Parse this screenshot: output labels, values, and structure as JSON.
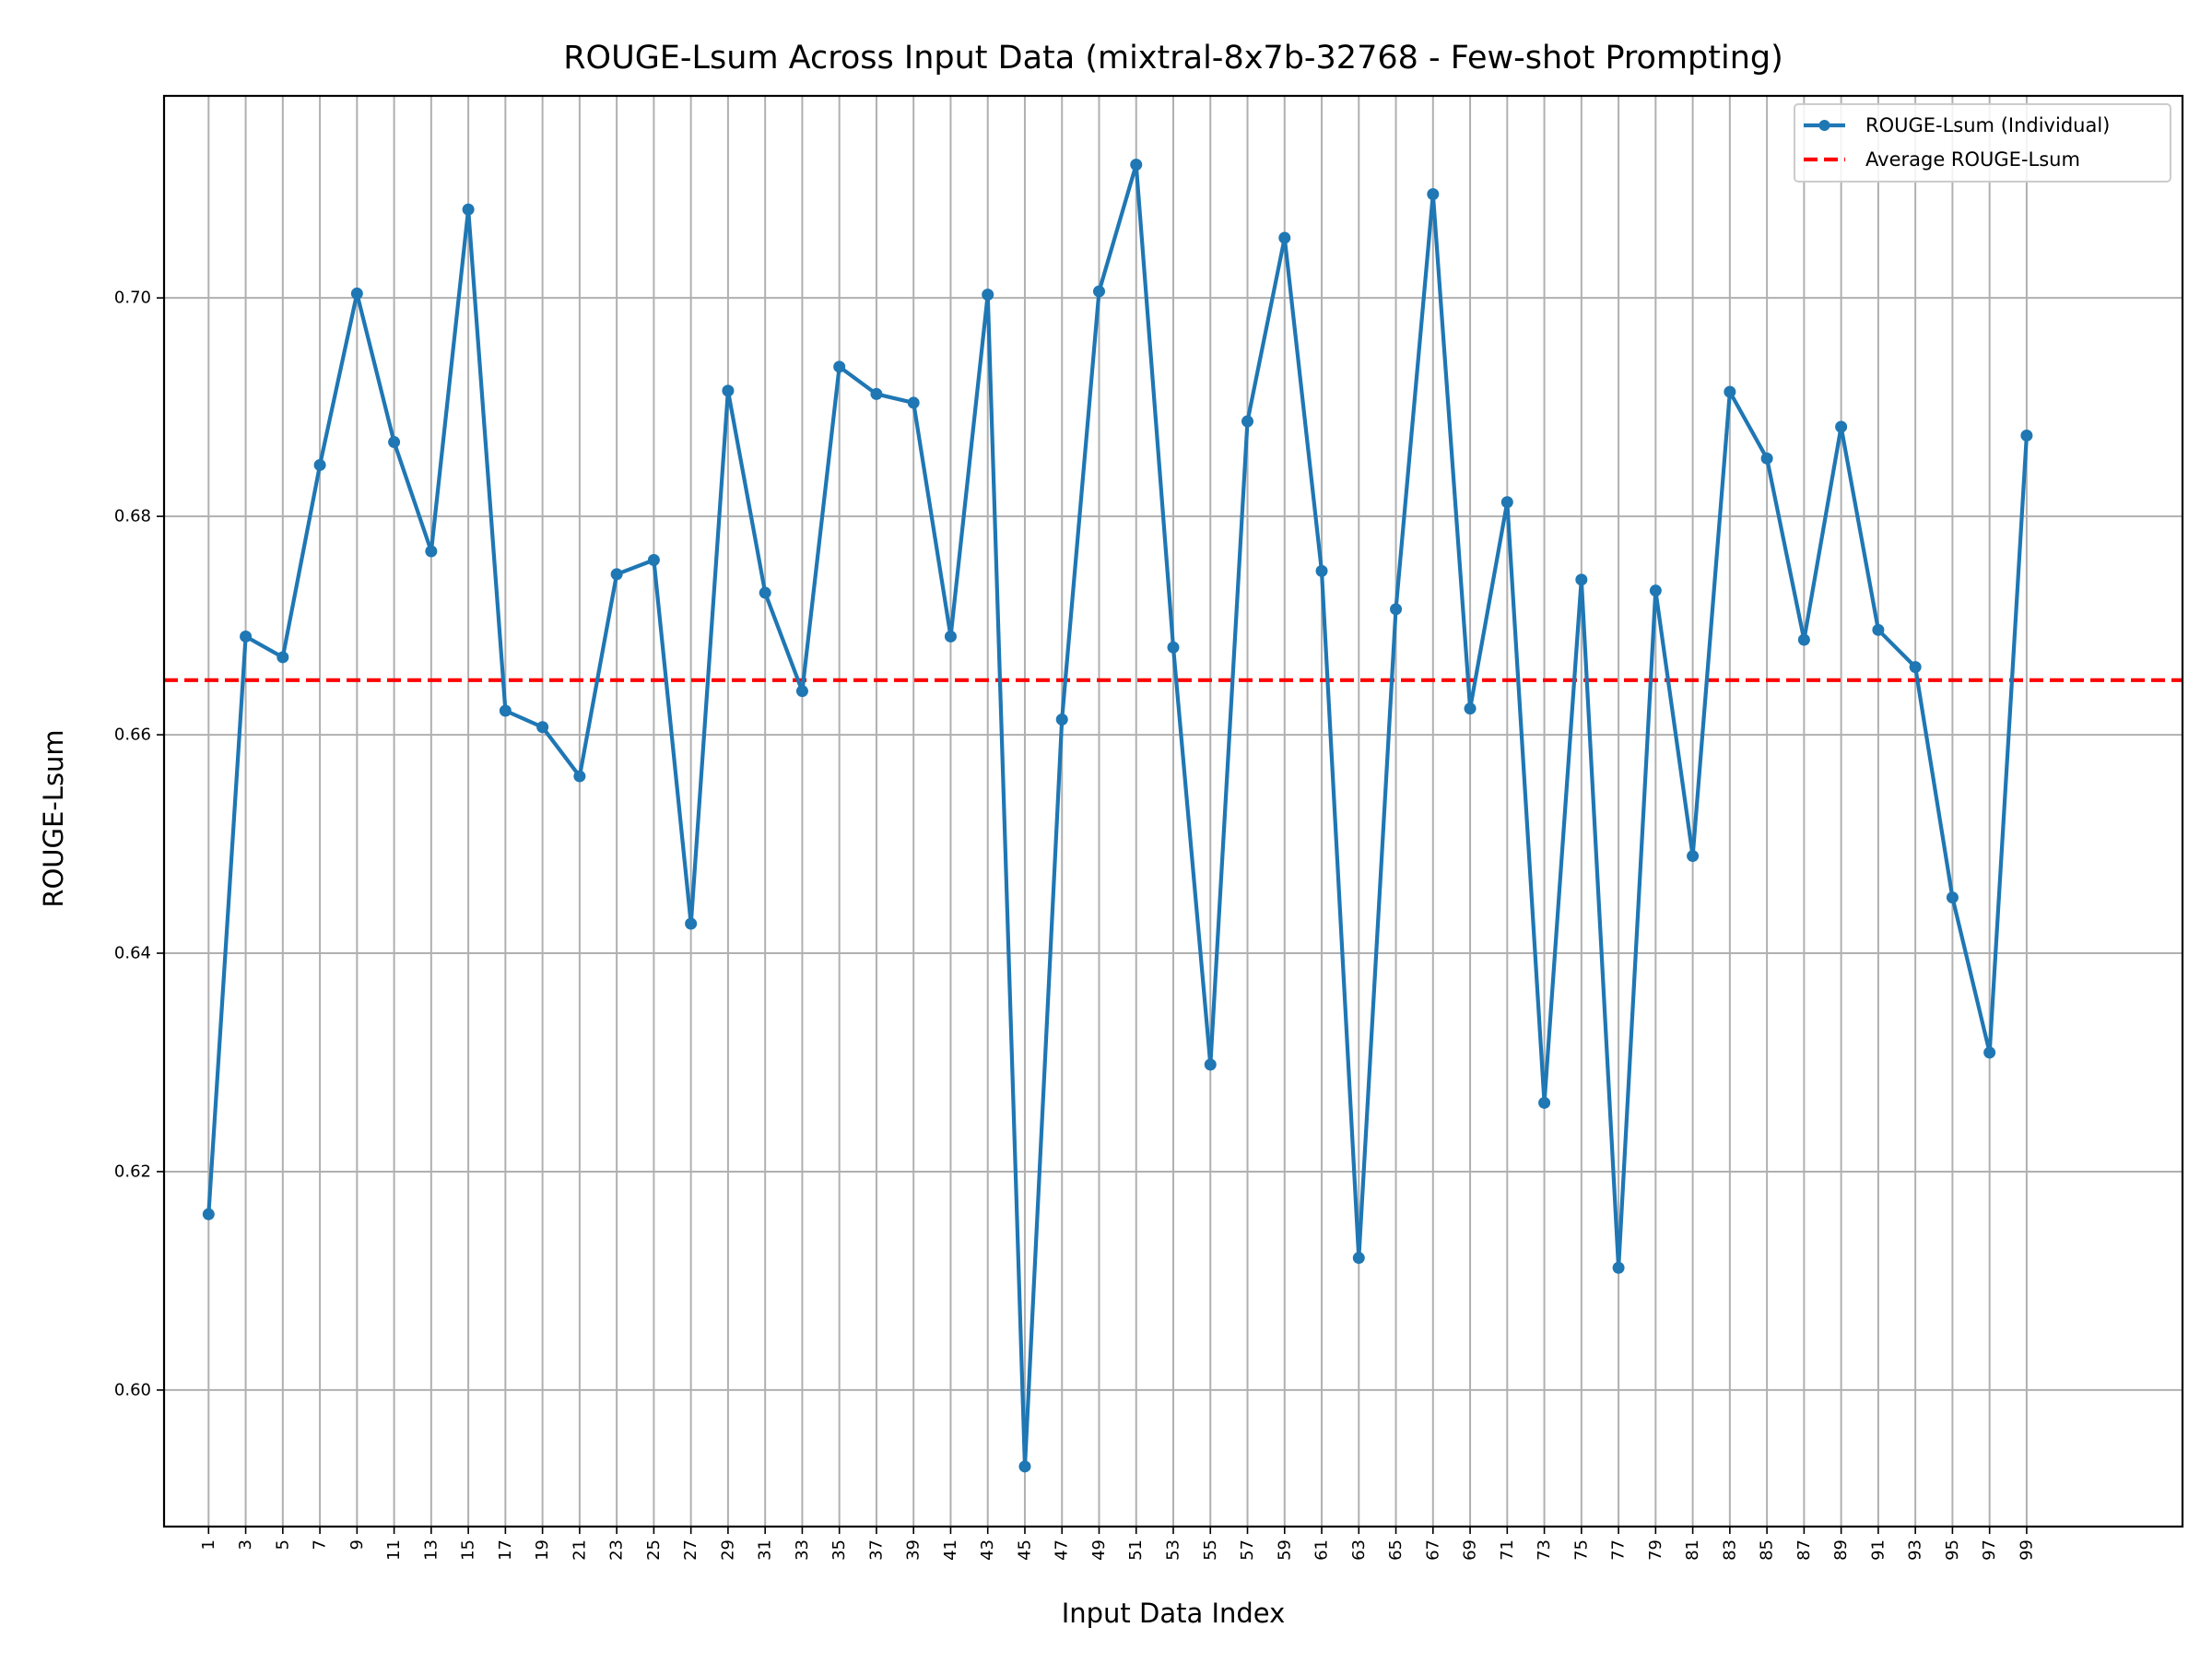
{
  "chart_data": {
    "type": "line",
    "title": "ROUGE-Lsum Across Input Data (mixtral-8x7b-32768 - Few-shot Prompting)",
    "xlabel": "Input Data Index",
    "ylabel": "ROUGE-Lsum",
    "xlim": [
      -1.4,
      107.4
    ],
    "ylim": [
      0.5875,
      0.7185
    ],
    "yticks": [
      0.6,
      0.62,
      0.64,
      0.66,
      0.68,
      0.7
    ],
    "yticklabels": [
      "0.60",
      "0.62",
      "0.64",
      "0.66",
      "0.68",
      "0.70"
    ],
    "xticks": [
      1,
      3,
      5,
      7,
      9,
      11,
      13,
      15,
      17,
      19,
      21,
      23,
      25,
      27,
      29,
      31,
      33,
      35,
      37,
      39,
      41,
      43,
      45,
      47,
      49,
      51,
      53,
      55,
      57,
      59,
      61,
      63,
      65,
      67,
      69,
      71,
      73,
      75,
      77,
      79,
      81,
      83,
      85,
      87,
      89,
      91,
      93,
      95,
      97,
      99
    ],
    "xticklabels": [
      "1",
      "3",
      "5",
      "7",
      "9",
      "11",
      "13",
      "15",
      "17",
      "19",
      "21",
      "23",
      "25",
      "27",
      "29",
      "31",
      "33",
      "35",
      "37",
      "39",
      "41",
      "43",
      "45",
      "47",
      "49",
      "51",
      "53",
      "55",
      "57",
      "59",
      "61",
      "63",
      "65",
      "67",
      "69",
      "71",
      "73",
      "75",
      "77",
      "79",
      "81",
      "83",
      "85",
      "87",
      "89",
      "91",
      "93",
      "95",
      "97",
      "99"
    ],
    "grid": true,
    "legend_position": "top-right",
    "series": [
      {
        "name": "ROUGE-Lsum (Individual)",
        "color": "#1f77b4",
        "style": "solid-with-markers",
        "x": [
          1,
          3,
          5,
          7,
          9,
          11,
          13,
          15,
          17,
          19,
          21,
          23,
          25,
          27,
          29,
          31,
          33,
          35,
          37,
          39,
          41,
          43,
          45,
          47,
          49,
          51,
          53,
          55,
          57,
          59,
          61,
          63,
          65,
          67,
          69,
          71,
          73,
          75,
          77,
          79,
          81,
          83,
          85,
          87,
          89,
          91,
          93,
          95,
          97,
          99
        ],
        "values": [
          0.6161,
          0.669,
          0.6671,
          0.6847,
          0.7004,
          0.6868,
          0.6768,
          0.7081,
          0.6622,
          0.6607,
          0.6562,
          0.6747,
          0.676,
          0.6427,
          0.6915,
          0.673,
          0.664,
          0.6937,
          0.6912,
          0.6904,
          0.669,
          0.7003,
          0.593,
          0.6614,
          0.7006,
          0.7122,
          0.668,
          0.6298,
          0.6887,
          0.7055,
          0.675,
          0.6121,
          0.6715,
          0.7095,
          0.6624,
          0.6813,
          0.6263,
          0.6742,
          0.6112,
          0.6732,
          0.6489,
          0.6914,
          0.6853,
          0.6687,
          0.6882,
          0.6696,
          0.6662,
          0.6451,
          0.6309,
          0.6874
        ]
      },
      {
        "name": "Average ROUGE-Lsum",
        "color": "#ff0000",
        "style": "dashed",
        "value": 0.665
      }
    ]
  }
}
